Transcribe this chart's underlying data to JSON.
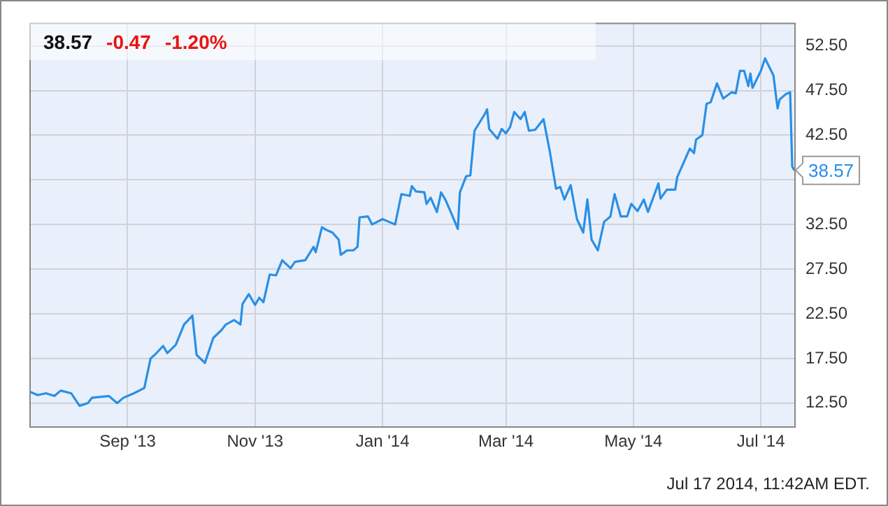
{
  "chart_data": {
    "type": "line",
    "x": [
      "2013-07-16",
      "2013-07-20",
      "2013-07-24",
      "2013-07-28",
      "2013-07-31",
      "2013-08-05",
      "2013-08-09",
      "2013-08-13",
      "2013-08-15",
      "2013-08-23",
      "2013-08-27",
      "2013-08-30",
      "2013-09-04",
      "2013-09-09",
      "2013-09-12",
      "2013-09-14",
      "2013-09-18",
      "2013-09-20",
      "2013-09-24",
      "2013-09-28",
      "2013-10-02",
      "2013-10-04",
      "2013-10-08",
      "2013-10-12",
      "2013-10-16",
      "2013-10-18",
      "2013-10-22",
      "2013-10-25",
      "2013-10-26",
      "2013-10-29",
      "2013-11-01",
      "2013-11-03",
      "2013-11-05",
      "2013-11-08",
      "2013-11-11",
      "2013-11-14",
      "2013-11-18",
      "2013-11-20",
      "2013-11-22",
      "2013-11-25",
      "2013-11-29",
      "2013-11-30",
      "2013-12-03",
      "2013-12-05",
      "2013-12-08",
      "2013-12-11",
      "2013-12-12",
      "2013-12-15",
      "2013-12-18",
      "2013-12-20",
      "2013-12-21",
      "2013-12-25",
      "2013-12-27",
      "2014-01-01",
      "2014-01-04",
      "2014-01-07",
      "2014-01-10",
      "2014-01-14",
      "2014-01-15",
      "2014-01-17",
      "2014-01-21",
      "2014-01-22",
      "2014-01-24",
      "2014-01-27",
      "2014-01-29",
      "2014-01-31",
      "2014-02-03",
      "2014-02-06",
      "2014-02-07",
      "2014-02-10",
      "2014-02-12",
      "2014-02-14",
      "2014-02-19",
      "2014-02-20",
      "2014-02-21",
      "2014-02-25",
      "2014-02-27",
      "2014-03-01",
      "2014-03-03",
      "2014-03-05",
      "2014-03-08",
      "2014-03-10",
      "2014-03-12",
      "2014-03-15",
      "2014-03-19",
      "2014-03-22",
      "2014-03-25",
      "2014-03-27",
      "2014-03-29",
      "2014-04-01",
      "2014-04-04",
      "2014-04-07",
      "2014-04-09",
      "2014-04-11",
      "2014-04-14",
      "2014-04-17",
      "2014-04-20",
      "2014-04-22",
      "2014-04-25",
      "2014-04-28",
      "2014-04-30",
      "2014-05-03",
      "2014-05-06",
      "2014-05-08",
      "2014-05-13",
      "2014-05-14",
      "2014-05-17",
      "2014-05-21",
      "2014-05-22",
      "2014-05-28",
      "2014-05-30",
      "2014-05-31",
      "2014-06-03",
      "2014-06-05",
      "2014-06-07",
      "2014-06-10",
      "2014-06-13",
      "2014-06-17",
      "2014-06-19",
      "2014-06-21",
      "2014-06-23",
      "2014-06-25",
      "2014-06-26",
      "2014-06-27",
      "2014-07-01",
      "2014-07-03",
      "2014-07-07",
      "2014-07-09",
      "2014-07-10",
      "2014-07-13",
      "2014-07-15",
      "2014-07-16",
      "2014-07-17"
    ],
    "series": [
      {
        "color": "#2a8fe6",
        "values": [
          13.8,
          13.4,
          13.6,
          13.3,
          13.9,
          13.6,
          12.2,
          12.5,
          13.1,
          13.3,
          12.5,
          13.1,
          13.6,
          14.2,
          17.5,
          17.9,
          18.9,
          18.1,
          19.0,
          21.3,
          22.3,
          17.9,
          17.0,
          19.8,
          20.7,
          21.3,
          21.8,
          21.3,
          23.6,
          24.7,
          23.5,
          24.3,
          23.8,
          26.9,
          26.8,
          28.5,
          27.6,
          28.3,
          28.4,
          28.5,
          30.0,
          29.4,
          32.2,
          31.9,
          31.6,
          30.8,
          29.1,
          29.6,
          29.6,
          30.0,
          33.3,
          33.4,
          32.5,
          33.1,
          32.8,
          32.5,
          35.9,
          35.7,
          36.8,
          36.2,
          36.1,
          34.8,
          35.5,
          33.9,
          36.1,
          35.3,
          33.7,
          32.0,
          36.1,
          37.9,
          38.0,
          43.0,
          44.9,
          45.4,
          43.2,
          42.1,
          43.2,
          42.7,
          43.4,
          45.1,
          44.3,
          45.1,
          43.0,
          43.1,
          44.3,
          40.7,
          36.5,
          36.7,
          35.3,
          36.9,
          33.1,
          31.6,
          35.3,
          30.8,
          29.6,
          32.8,
          33.4,
          35.9,
          33.4,
          33.4,
          34.8,
          34.0,
          35.3,
          33.9,
          37.1,
          35.4,
          36.4,
          36.4,
          37.8,
          41.0,
          40.5,
          42.0,
          42.5,
          46.0,
          46.2,
          48.3,
          46.6,
          47.3,
          47.2,
          49.7,
          49.7,
          48.0,
          49.4,
          47.8,
          49.7,
          51.1,
          49.2,
          45.5,
          46.5,
          47.1,
          47.3,
          39.0,
          38.57
        ]
      }
    ],
    "xlim": [
      "2013-07-16",
      "2014-07-17"
    ],
    "xticks": [
      {
        "value": "2013-09-01",
        "label": "Sep '13"
      },
      {
        "value": "2013-11-01",
        "label": "Nov '13"
      },
      {
        "value": "2014-01-01",
        "label": "Jan '14"
      },
      {
        "value": "2014-03-01",
        "label": "Mar '14"
      },
      {
        "value": "2014-05-01",
        "label": "May '14"
      },
      {
        "value": "2014-07-01",
        "label": "Jul '14"
      }
    ],
    "ylim": [
      9.9,
      55.1
    ],
    "yticks": [
      {
        "value": 12.5,
        "label": "12.50"
      },
      {
        "value": 17.5,
        "label": "17.50"
      },
      {
        "value": 22.5,
        "label": "22.50"
      },
      {
        "value": 27.5,
        "label": "27.50"
      },
      {
        "value": 32.5,
        "label": "32.50"
      },
      {
        "value": 37.5,
        "label": null
      },
      {
        "value": 42.5,
        "label": "42.50"
      },
      {
        "value": 47.5,
        "label": "47.50"
      },
      {
        "value": 52.5,
        "label": "52.50"
      }
    ],
    "title": "38.57",
    "subtitle": "-0.47  -1.20%",
    "annotations": [
      {
        "text": "38.57",
        "x": "2014-07-17",
        "y": 38.57
      },
      "Jul 17 2014, 11:42AM EDT."
    ],
    "grid": true,
    "legend": false,
    "marker": "none",
    "line_style": "solid"
  }
}
